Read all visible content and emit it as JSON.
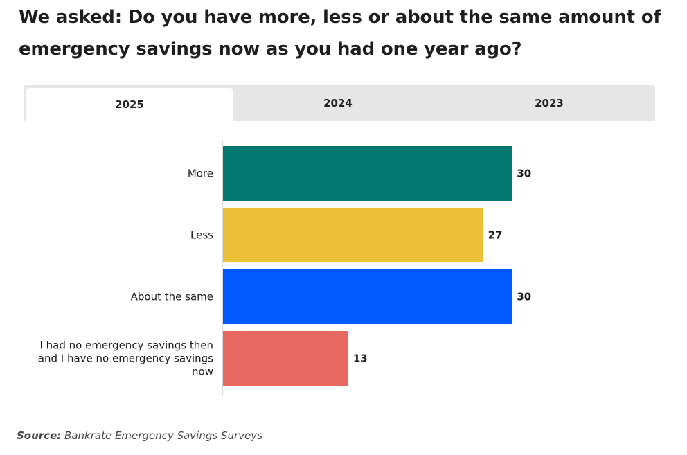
{
  "title": "We asked: Do you have more, less or about the same amount of emergency savings now as you had one year ago?",
  "tabs": [
    {
      "label": "2025",
      "active": true
    },
    {
      "label": "2024",
      "active": false
    },
    {
      "label": "2023",
      "active": false
    }
  ],
  "source": {
    "label": "Source:",
    "text": "Bankrate Emergency Savings Surveys"
  },
  "chart_data": {
    "type": "bar",
    "orientation": "horizontal",
    "categories": [
      "More",
      "Less",
      "About the same",
      "I had no emergency savings then and I have no emergency savings now"
    ],
    "category_lines": [
      [
        "More"
      ],
      [
        "Less"
      ],
      [
        "About the same"
      ],
      [
        "I had no emergency savings then",
        "and I have no emergency savings",
        "now"
      ]
    ],
    "values": [
      30,
      27,
      30,
      13
    ],
    "colors": [
      "#027870",
      "#ecc13a",
      "#0059ff",
      "#e76860"
    ],
    "xlim": [
      0,
      45
    ],
    "grid": false,
    "value_labels": true
  }
}
